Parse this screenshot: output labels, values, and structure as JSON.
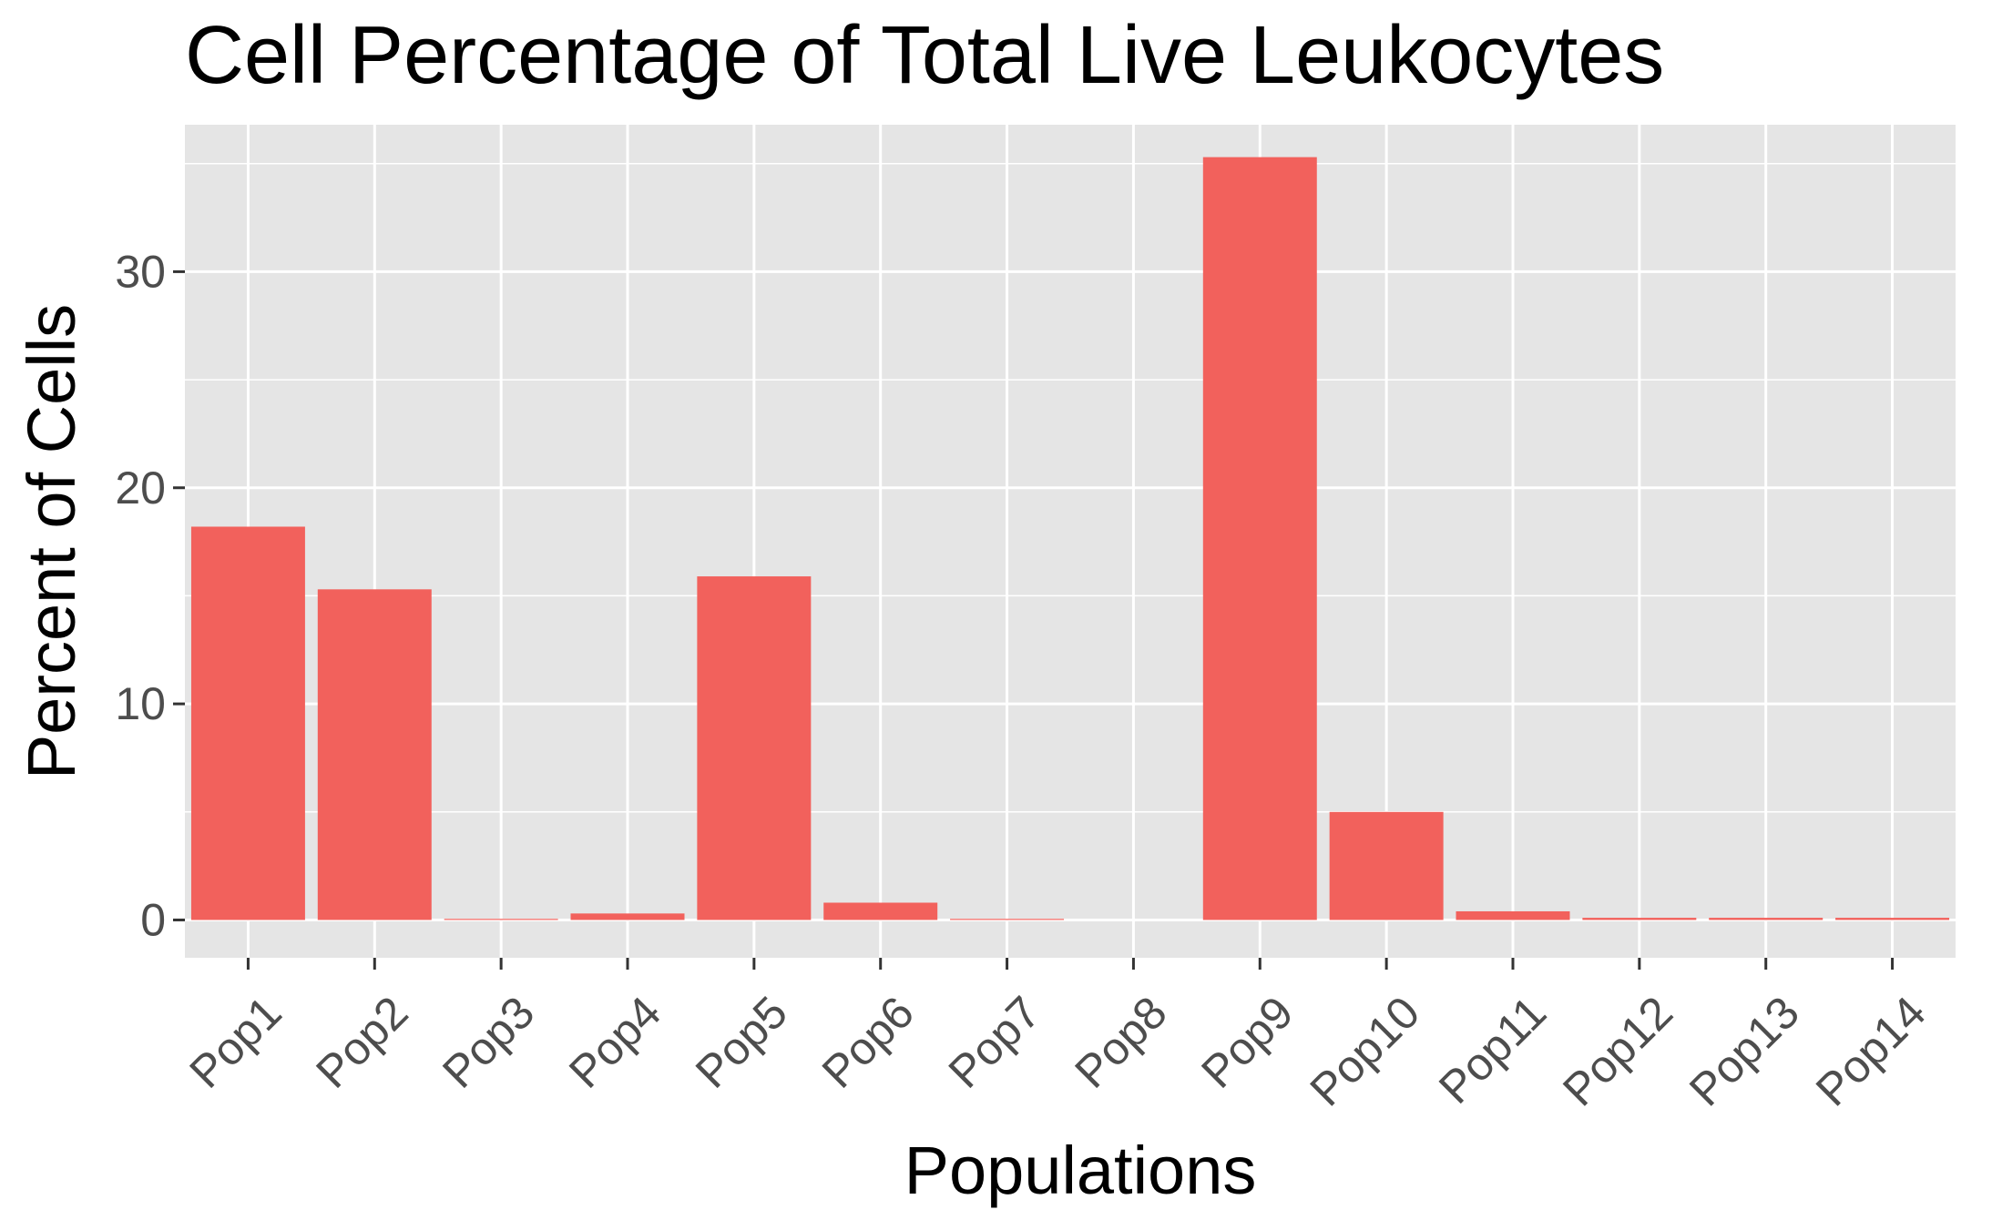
{
  "chart_data": {
    "type": "bar",
    "title": "Cell Percentage of Total Live Leukocytes",
    "xlabel": "Populations",
    "ylabel": "Percent of Cells",
    "categories": [
      "Pop1",
      "Pop2",
      "Pop3",
      "Pop4",
      "Pop5",
      "Pop6",
      "Pop7",
      "Pop8",
      "Pop9",
      "Pop10",
      "Pop11",
      "Pop12",
      "Pop13",
      "Pop14"
    ],
    "values": [
      18.2,
      15.3,
      0.05,
      0.3,
      15.9,
      0.8,
      0.05,
      0,
      35.3,
      5.0,
      0.4,
      0.1,
      0.1,
      0.1
    ],
    "y_ticks": [
      0,
      10,
      20,
      30
    ],
    "y_tick_labels": [
      "0",
      "10",
      "20",
      "30"
    ],
    "ylim": [
      -1.75,
      36.8
    ],
    "grid": true,
    "legend": "none",
    "colors": {
      "bar": "#F2615C",
      "panel_background": "#E5E5E5",
      "grid_line": "#FFFFFF",
      "tick_text": "#4D4D4D",
      "axis_tick": "#333333"
    }
  }
}
